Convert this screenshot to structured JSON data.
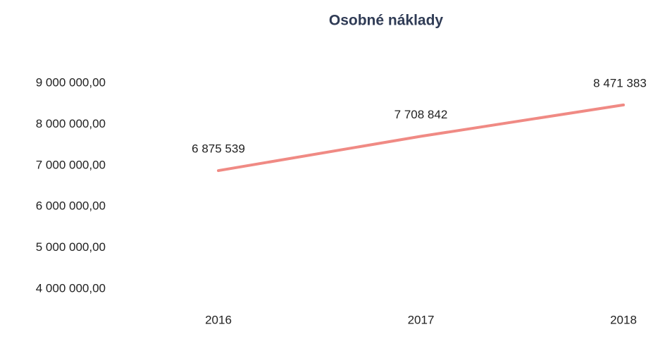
{
  "chart_data": {
    "type": "line",
    "title": "Osobné náklady",
    "categories": [
      "2016",
      "2017",
      "2018"
    ],
    "series": [
      {
        "name": "Osobné náklady",
        "color": "#f08a84",
        "values": [
          6875539,
          7708842,
          8471383
        ],
        "value_labels": [
          "6 875 539",
          "7 708 842",
          "8 471 383"
        ]
      }
    ],
    "ylim": [
      4000000,
      9000000
    ],
    "yticks": [
      {
        "value": 4000000,
        "label": "4 000 000,00"
      },
      {
        "value": 5000000,
        "label": "5 000 000,00"
      },
      {
        "value": 6000000,
        "label": "6 000 000,00"
      },
      {
        "value": 7000000,
        "label": "7 000 000,00"
      },
      {
        "value": 8000000,
        "label": "8 000 000,00"
      },
      {
        "value": 9000000,
        "label": "9 000 000,00"
      }
    ],
    "grid": false,
    "legend": false
  }
}
